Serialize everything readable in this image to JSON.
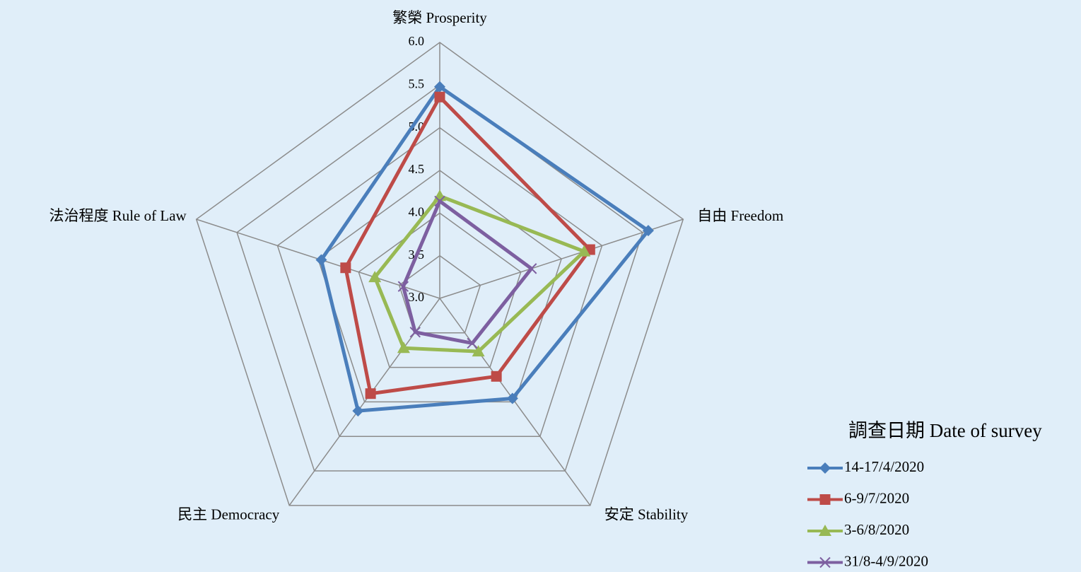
{
  "chart_data": {
    "type": "radar",
    "categories": [
      "繁榮 Prosperity",
      "自由 Freedom",
      "安定 Stability",
      "民主 Democracy",
      "法治程度 Rule of Law"
    ],
    "ylim": [
      3,
      6
    ],
    "yticks": [
      {
        "value": 3,
        "label": "3.0"
      },
      {
        "value": 3.5,
        "label": "3.5"
      },
      {
        "value": 4,
        "label": "4.0"
      },
      {
        "value": 4.5,
        "label": "4.5"
      },
      {
        "value": 5,
        "label": "5.0"
      },
      {
        "value": 5.5,
        "label": "5.5"
      },
      {
        "value": 6,
        "label": "6.0"
      }
    ],
    "grid": true,
    "legend": "bottom-right",
    "legend_title": "調查日期 Date of survey",
    "series": [
      {
        "name": "14-17/4/2020",
        "color": "#4a7ebb",
        "marker": "diamond",
        "values": [
          5.48,
          5.57,
          4.45,
          4.63,
          4.46
        ]
      },
      {
        "name": "6-9/7/2020",
        "color": "#be4b48",
        "marker": "square",
        "values": [
          5.36,
          4.85,
          4.13,
          4.38,
          4.16
        ]
      },
      {
        "name": "3-6/8/2020",
        "color": "#98b954",
        "marker": "triangle",
        "values": [
          4.2,
          4.78,
          3.77,
          3.72,
          3.8
        ]
      },
      {
        "name": "31/8-4/9/2020",
        "color": "#7d5fa0",
        "marker": "x",
        "values": [
          4.14,
          4.13,
          3.65,
          3.49,
          3.45
        ]
      }
    ]
  }
}
